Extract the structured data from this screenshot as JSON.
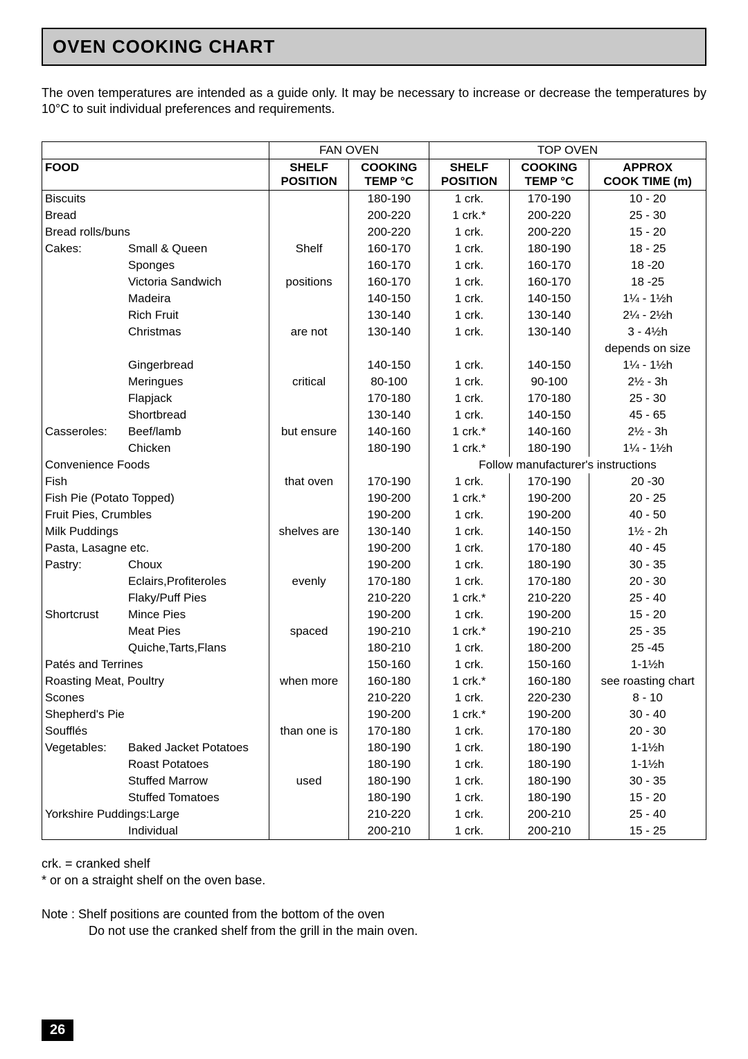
{
  "page_number": "26",
  "title": "OVEN COOKING CHART",
  "intro": "The oven temperatures are intended as a guide only. It may be necessary to increase or decrease the temperatures by 10°C to suit individual preferences and requirements.",
  "headers": {
    "fan_oven": "FAN  OVEN",
    "top_oven": "TOP OVEN",
    "food": "FOOD",
    "fan_shelf": "SHELF POSITION",
    "fan_temp": "COOKING TEMP °C",
    "top_shelf": "SHELF POSITION",
    "top_temp": "COOKING TEMP °C",
    "top_time": "APPROX COOK TIME (m)"
  },
  "fan_shelf_phrases": [
    "",
    "",
    "",
    "Shelf",
    "",
    "positions",
    "",
    "",
    "are not",
    "",
    "",
    "critical",
    "",
    "",
    "but ensure",
    "",
    "",
    "that oven",
    "",
    "",
    "shelves  are",
    "",
    "",
    "evenly",
    "",
    "",
    "spaced",
    "",
    "",
    "when more",
    "",
    "",
    "than one is",
    "",
    "",
    "used",
    "",
    "",
    ""
  ],
  "rows": [
    {
      "food": "Biscuits",
      "sub": "",
      "fan_temp": "180-190",
      "top_shelf": "1 crk.",
      "top_temp": "170-190",
      "time": "10 - 20"
    },
    {
      "food": "Bread",
      "sub": "",
      "fan_temp": "200-220",
      "top_shelf": "1 crk.*",
      "top_temp": "200-220",
      "time": "25 - 30"
    },
    {
      "food": "Bread rolls/buns",
      "sub": "",
      "fan_temp": "200-220",
      "top_shelf": "1 crk.",
      "top_temp": "200-220",
      "time": "15 - 20"
    },
    {
      "food": "Cakes:",
      "sub": "Small & Queen",
      "fan_temp": "160-170",
      "top_shelf": "1 crk.",
      "top_temp": "180-190",
      "time": "18 - 25"
    },
    {
      "food": "",
      "sub": "Sponges",
      "fan_temp": "160-170",
      "top_shelf": "1 crk.",
      "top_temp": "160-170",
      "time": "18 -20"
    },
    {
      "food": "",
      "sub": "Victoria Sandwich",
      "fan_temp": "160-170",
      "top_shelf": "1 crk.",
      "top_temp": "160-170",
      "time": "18 -25"
    },
    {
      "food": "",
      "sub": "Madeira",
      "fan_temp": "140-150",
      "top_shelf": "1 crk.",
      "top_temp": "140-150",
      "time": "1¼ - 1½h"
    },
    {
      "food": "",
      "sub": "Rich Fruit",
      "fan_temp": "130-140",
      "top_shelf": "1 crk.",
      "top_temp": "130-140",
      "time": "2¼ - 2½h"
    },
    {
      "food": "",
      "sub": "Christmas",
      "fan_temp": "130-140",
      "top_shelf": "1 crk.",
      "top_temp": "130-140",
      "time": "3 - 4½h"
    },
    {
      "food": "",
      "sub": "",
      "fan_temp": "",
      "top_shelf": "",
      "top_temp": "",
      "time": "depends on size"
    },
    {
      "food": "",
      "sub": "Gingerbread",
      "fan_temp": "140-150",
      "top_shelf": "1 crk.",
      "top_temp": "140-150",
      "time": "1¼ - 1½h"
    },
    {
      "food": "",
      "sub": "Meringues",
      "fan_temp": "80-100",
      "top_shelf": "1 crk.",
      "top_temp": "90-100",
      "time": "2½ - 3h"
    },
    {
      "food": "",
      "sub": "Flapjack",
      "fan_temp": "170-180",
      "top_shelf": "1 crk.",
      "top_temp": "170-180",
      "time": "25 - 30"
    },
    {
      "food": "",
      "sub": "Shortbread",
      "fan_temp": "130-140",
      "top_shelf": "1 crk.",
      "top_temp": "140-150",
      "time": "45 - 65"
    },
    {
      "food": "Casseroles:",
      "sub": "Beef/lamb",
      "fan_temp": "140-160",
      "top_shelf": "1 crk.*",
      "top_temp": "140-160",
      "time": "2½ - 3h"
    },
    {
      "food": "",
      "sub": "Chicken",
      "fan_temp": "180-190",
      "top_shelf": "1 crk.*",
      "top_temp": "180-190",
      "time": "1¼ - 1½h"
    },
    {
      "food": "Convenience Foods",
      "sub": "",
      "fan_temp": "",
      "top_shelf": "Follow manufacturer's instructions",
      "top_temp": "",
      "time": "",
      "span": true
    },
    {
      "food": "Fish",
      "sub": "",
      "fan_temp": "170-190",
      "top_shelf": "1 crk.",
      "top_temp": "170-190",
      "time": "20 -30"
    },
    {
      "food": "Fish Pie (Potato Topped)",
      "sub": "",
      "fan_temp": "190-200",
      "top_shelf": "1 crk.*",
      "top_temp": "190-200",
      "time": "20 - 25"
    },
    {
      "food": "Fruit Pies, Crumbles",
      "sub": "",
      "fan_temp": "190-200",
      "top_shelf": "1 crk.",
      "top_temp": "190-200",
      "time": "40 - 50"
    },
    {
      "food": "Milk Puddings",
      "sub": "",
      "fan_temp": "130-140",
      "top_shelf": "1 crk.",
      "top_temp": "140-150",
      "time": "1½ - 2h"
    },
    {
      "food": "Pasta, Lasagne etc.",
      "sub": "",
      "fan_temp": "190-200",
      "top_shelf": "1 crk.",
      "top_temp": "170-180",
      "time": "40 - 45"
    },
    {
      "food": "Pastry:",
      "sub": "Choux",
      "fan_temp": "190-200",
      "top_shelf": "1 crk.",
      "top_temp": "180-190",
      "time": "30 - 35"
    },
    {
      "food": "",
      "sub": "Eclairs,Profiteroles",
      "fan_temp": "170-180",
      "top_shelf": "1 crk.",
      "top_temp": "170-180",
      "time": "20 - 30"
    },
    {
      "food": "",
      "sub": "Flaky/Puff Pies",
      "fan_temp": "210-220",
      "top_shelf": "1 crk.*",
      "top_temp": "210-220",
      "time": "25 - 40"
    },
    {
      "food": "Shortcrust",
      "sub": "Mince Pies",
      "fan_temp": "190-200",
      "top_shelf": "1 crk.",
      "top_temp": "190-200",
      "time": "15 - 20"
    },
    {
      "food": "",
      "sub": "Meat Pies",
      "fan_temp": "190-210",
      "top_shelf": "1 crk.*",
      "top_temp": "190-210",
      "time": "25 - 35"
    },
    {
      "food": "",
      "sub": "Quiche,Tarts,Flans",
      "fan_temp": "180-210",
      "top_shelf": "1 crk.",
      "top_temp": "180-200",
      "time": "25 -45"
    },
    {
      "food": "Patés and Terrines",
      "sub": "",
      "fan_temp": "150-160",
      "top_shelf": "1 crk.",
      "top_temp": "150-160",
      "time": "1-1½h"
    },
    {
      "food": "Roasting Meat, Poultry",
      "sub": "",
      "fan_temp": "160-180",
      "top_shelf": "1 crk.*",
      "top_temp": "160-180",
      "time": "see roasting chart"
    },
    {
      "food": "Scones",
      "sub": "",
      "fan_temp": "210-220",
      "top_shelf": "1 crk.",
      "top_temp": "220-230",
      "time": "8 - 10"
    },
    {
      "food": "Shepherd's Pie",
      "sub": "",
      "fan_temp": "190-200",
      "top_shelf": "1 crk.*",
      "top_temp": "190-200",
      "time": "30 - 40"
    },
    {
      "food": "Soufflés",
      "sub": "",
      "fan_temp": "170-180",
      "top_shelf": "1 crk.",
      "top_temp": "170-180",
      "time": "20 - 30"
    },
    {
      "food": "Vegetables:",
      "sub": "Baked Jacket Potatoes",
      "fan_temp": "180-190",
      "top_shelf": "1 crk.",
      "top_temp": "180-190",
      "time": "1-1½h"
    },
    {
      "food": "",
      "sub": "Roast Potatoes",
      "fan_temp": "180-190",
      "top_shelf": "1 crk.",
      "top_temp": "180-190",
      "time": "1-1½h"
    },
    {
      "food": "",
      "sub": "Stuffed Marrow",
      "fan_temp": "180-190",
      "top_shelf": "1 crk.",
      "top_temp": "180-190",
      "time": "30 - 35"
    },
    {
      "food": "",
      "sub": "Stuffed Tomatoes",
      "fan_temp": "180-190",
      "top_shelf": "1 crk.",
      "top_temp": "180-190",
      "time": "15 - 20"
    },
    {
      "food": "Yorkshire Puddings:Large",
      "sub": "",
      "fan_temp": "210-220",
      "top_shelf": "1 crk.",
      "top_temp": "200-210",
      "time": "25 - 40"
    },
    {
      "food": "",
      "sub": "Individual",
      "fan_temp": "200-210",
      "top_shelf": "1 crk.",
      "top_temp": "200-210",
      "time": "15 - 25"
    }
  ],
  "notes": {
    "n1": "crk.   = cranked shelf",
    "n2": "*    or on a straight shelf on the oven base.",
    "n3": "Note :   Shelf positions are counted from the bottom of the oven",
    "n4": "Do not use the cranked shelf from the grill in the main oven."
  },
  "colors": {
    "title_bg": "#c9c9c9",
    "border": "#000000",
    "page_bg": "#ffffff",
    "pagenum_bg": "#000000",
    "pagenum_fg": "#ffffff"
  },
  "fonts": {
    "body_pt": 13,
    "title_pt": 20
  }
}
